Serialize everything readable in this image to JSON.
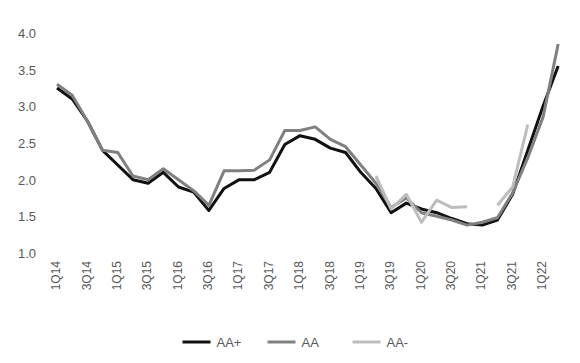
{
  "chart_data": {
    "type": "line",
    "categories": [
      "1Q14",
      null,
      "3Q14",
      null,
      "1Q15",
      null,
      "3Q15",
      null,
      "1Q16",
      null,
      "3Q16",
      null,
      "1Q17",
      null,
      "3Q17",
      null,
      "1Q18",
      null,
      "3Q18",
      null,
      "1Q19",
      null,
      "3Q19",
      null,
      "1Q20",
      null,
      "3Q20",
      null,
      "1Q21",
      null,
      "3Q21",
      null,
      "1Q22",
      null
    ],
    "series": [
      {
        "name": "AA+",
        "color": "#111111",
        "values": [
          3.25,
          3.1,
          2.8,
          2.4,
          2.2,
          2.0,
          1.95,
          2.1,
          1.9,
          1.83,
          1.58,
          1.88,
          2.0,
          2.0,
          2.1,
          2.48,
          2.6,
          2.55,
          2.43,
          2.37,
          2.1,
          1.88,
          1.55,
          1.68,
          1.6,
          1.55,
          1.47,
          1.4,
          1.38,
          1.45,
          1.8,
          2.4,
          3.0,
          3.55
        ]
      },
      {
        "name": "AA",
        "color": "#808080",
        "values": [
          3.3,
          3.15,
          2.8,
          2.4,
          2.37,
          2.05,
          2.0,
          2.15,
          2.0,
          1.85,
          1.65,
          2.12,
          2.12,
          2.13,
          2.27,
          2.67,
          2.67,
          2.72,
          2.55,
          2.45,
          2.2,
          1.95,
          1.62,
          1.75,
          1.55,
          1.5,
          1.45,
          1.38,
          1.42,
          1.48,
          1.82,
          2.3,
          2.85,
          3.85
        ]
      },
      {
        "name": "AA-",
        "color": "#bdbdbd",
        "values": [
          null,
          null,
          null,
          null,
          null,
          null,
          null,
          null,
          null,
          null,
          null,
          null,
          null,
          null,
          null,
          null,
          null,
          null,
          null,
          null,
          null,
          2.05,
          1.6,
          1.8,
          1.42,
          1.72,
          1.62,
          1.63,
          null,
          1.65,
          1.9,
          2.75,
          null,
          null
        ]
      }
    ],
    "ylim": [
      1,
      4
    ],
    "yticks": [
      {
        "value": 1,
        "label": "1.0"
      },
      1.5,
      {
        "value": 2,
        "label": "2.0"
      },
      2.5,
      {
        "value": 3,
        "label": "3.0"
      },
      3.5,
      {
        "value": 4,
        "label": "4.0"
      }
    ],
    "grid": false,
    "legend": "bottom"
  }
}
